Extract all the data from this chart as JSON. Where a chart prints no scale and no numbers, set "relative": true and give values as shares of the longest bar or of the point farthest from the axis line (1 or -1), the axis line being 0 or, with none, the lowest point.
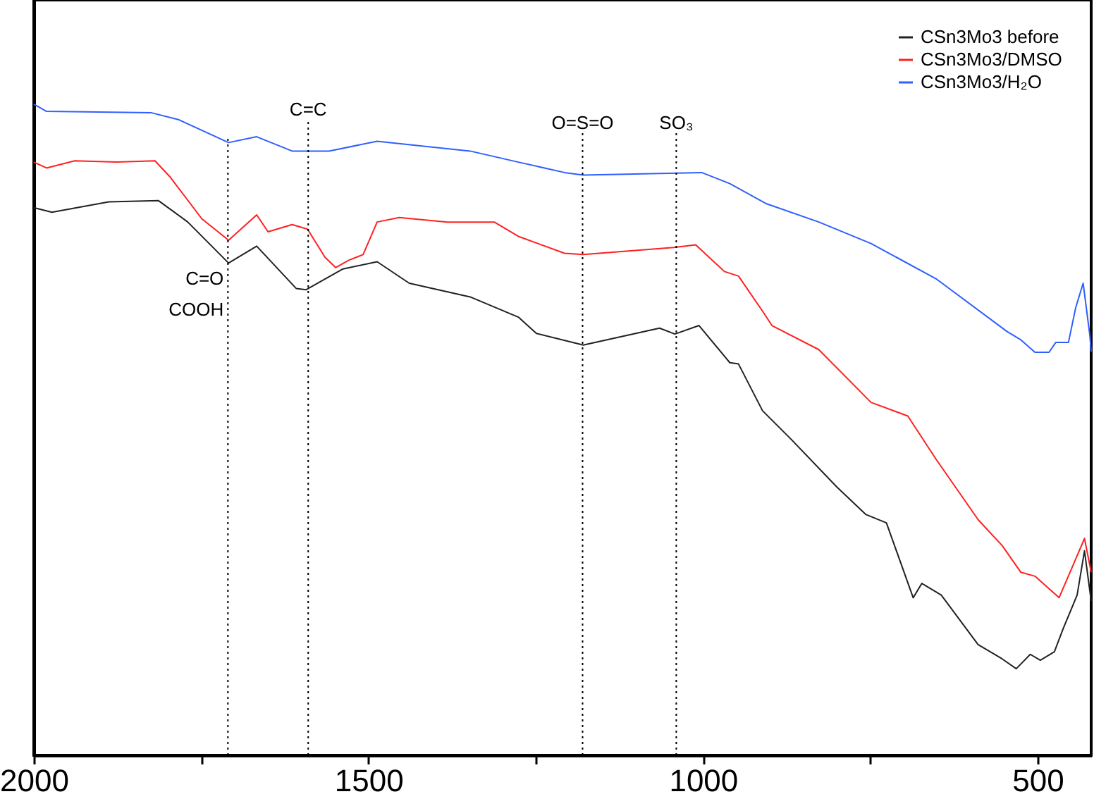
{
  "chart_data": {
    "type": "line",
    "relative": true,
    "legend": "top right",
    "grid": false,
    "line_style": "solid",
    "marker": "none",
    "tick_labels": "x",
    "xlim": [
      2000,
      420
    ],
    "xticks": [
      2000,
      {
        "value": 1750,
        "label": null
      },
      1500,
      {
        "value": 1250,
        "label": null
      },
      1000,
      {
        "value": 750,
        "label": null
      },
      500
    ],
    "series": [
      {
        "name": "CSn3Mo3 before",
        "color": "#222222",
        "x": [
          2000,
          1973,
          1888,
          1814,
          1770,
          1709,
          1667,
          1608,
          1593,
          1538,
          1487,
          1439,
          1348,
          1276,
          1249,
          1179,
          1065,
          1042,
          1006,
          960,
          947,
          911,
          869,
          800,
          757,
          726,
          686,
          673,
          644,
          589,
          553,
          532,
          511,
          496,
          475,
          462,
          441,
          430,
          420
        ],
        "values": [
          0.841,
          0.834,
          0.85,
          0.852,
          0.819,
          0.756,
          0.782,
          0.717,
          0.715,
          0.747,
          0.758,
          0.725,
          0.704,
          0.673,
          0.648,
          0.63,
          0.656,
          0.647,
          0.66,
          0.603,
          0.601,
          0.529,
          0.486,
          0.412,
          0.37,
          0.357,
          0.242,
          0.264,
          0.246,
          0.17,
          0.148,
          0.133,
          0.155,
          0.146,
          0.159,
          0.194,
          0.246,
          0.314,
          0.237
        ]
      },
      {
        "name": "CSn3Mo3/DMSO",
        "color": "#ff2020",
        "x": [
          2000,
          1981,
          1939,
          1876,
          1819,
          1797,
          1749,
          1709,
          1667,
          1650,
          1614,
          1591,
          1565,
          1549,
          1530,
          1508,
          1487,
          1454,
          1382,
          1312,
          1276,
          1207,
          1179,
          1044,
          1011,
          968,
          947,
          911,
          897,
          827,
          749,
          694,
          652,
          589,
          553,
          525,
          504,
          468,
          447,
          430,
          420
        ],
        "values": [
          0.911,
          0.902,
          0.913,
          0.911,
          0.913,
          0.889,
          0.824,
          0.791,
          0.83,
          0.804,
          0.815,
          0.808,
          0.765,
          0.749,
          0.76,
          0.769,
          0.819,
          0.826,
          0.819,
          0.819,
          0.797,
          0.771,
          0.769,
          0.78,
          0.784,
          0.743,
          0.736,
          0.682,
          0.66,
          0.623,
          0.542,
          0.521,
          0.455,
          0.362,
          0.322,
          0.281,
          0.275,
          0.242,
          0.292,
          0.333,
          0.281
        ]
      },
      {
        "name": "CSn3Mo3/H₂O",
        "color": "#2f5fff",
        "x": [
          2000,
          1981,
          1825,
          1783,
          1709,
          1667,
          1614,
          1559,
          1487,
          1348,
          1276,
          1207,
          1179,
          1002,
          960,
          905,
          827,
          749,
          652,
          546,
          525,
          504,
          483,
          473,
          454,
          443,
          432,
          422,
          420
        ],
        "values": [
          1.0,
          0.989,
          0.987,
          0.976,
          0.941,
          0.95,
          0.928,
          0.928,
          0.943,
          0.928,
          0.911,
          0.895,
          0.891,
          0.895,
          0.878,
          0.847,
          0.819,
          0.786,
          0.732,
          0.651,
          0.638,
          0.619,
          0.619,
          0.634,
          0.634,
          0.688,
          0.725,
          0.645,
          0.62
        ]
      }
    ],
    "ref_lines": [
      {
        "axis": "x",
        "value": 1710,
        "line_style": "dotted",
        "color": "#000000"
      },
      {
        "axis": "x",
        "value": 1590,
        "line_style": "dotted",
        "color": "#000000"
      },
      {
        "axis": "x",
        "value": 1180,
        "line_style": "dotted",
        "color": "#000000"
      },
      {
        "axis": "x",
        "value": 1040,
        "line_style": "dotted",
        "color": "#000000"
      }
    ],
    "annotations": [
      {
        "text": "C=O\nCOOH",
        "x": 1710,
        "y": 0.745
      },
      {
        "text": "C=C",
        "x": 1590,
        "y": 0.976
      },
      {
        "text": "O=S=O",
        "x": 1180,
        "y": 0.956
      },
      {
        "text": "SO₃",
        "x": 1040,
        "y": 0.956
      }
    ]
  }
}
